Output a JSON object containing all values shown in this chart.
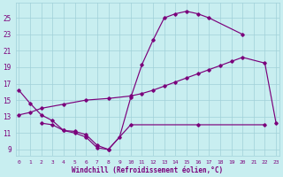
{
  "xlabel": "Windchill (Refroidissement éolien,°C)",
  "bg_color": "#c8eef0",
  "grid_color": "#a0d0d8",
  "line_color": "#7b007b",
  "ylim": [
    8.2,
    26.8
  ],
  "xlim": [
    -0.3,
    23.3
  ],
  "yticks": [
    9,
    11,
    13,
    15,
    17,
    19,
    21,
    23,
    25
  ],
  "xticks": [
    0,
    1,
    2,
    3,
    4,
    5,
    6,
    7,
    8,
    9,
    10,
    11,
    12,
    13,
    14,
    15,
    16,
    17,
    18,
    19,
    20,
    21,
    22,
    23
  ],
  "arch_x": [
    0,
    1,
    2,
    3,
    4,
    5,
    6,
    7,
    8,
    9,
    10,
    11,
    12,
    13,
    14,
    15,
    16,
    17,
    20
  ],
  "arch_y": [
    16.2,
    14.6,
    13.2,
    12.5,
    11.3,
    11.0,
    10.5,
    9.2,
    9.0,
    10.5,
    15.3,
    19.3,
    22.3,
    25.0,
    25.5,
    25.8,
    25.5,
    25.0,
    23.0
  ],
  "diag_x": [
    0,
    1,
    2,
    4,
    6,
    8,
    10,
    11,
    12,
    13,
    14,
    15,
    16,
    17,
    18,
    19,
    20,
    22,
    23
  ],
  "diag_y": [
    13.2,
    13.5,
    14.0,
    14.5,
    15.0,
    15.2,
    15.5,
    15.8,
    16.2,
    16.7,
    17.2,
    17.7,
    18.2,
    18.7,
    19.2,
    19.7,
    20.2,
    19.5,
    12.2
  ],
  "flat_x": [
    2,
    3,
    4,
    5,
    6,
    7,
    8,
    10,
    16,
    22
  ],
  "flat_y": [
    12.2,
    12.0,
    11.3,
    11.2,
    10.8,
    9.5,
    9.0,
    12.0,
    12.0,
    12.0
  ]
}
